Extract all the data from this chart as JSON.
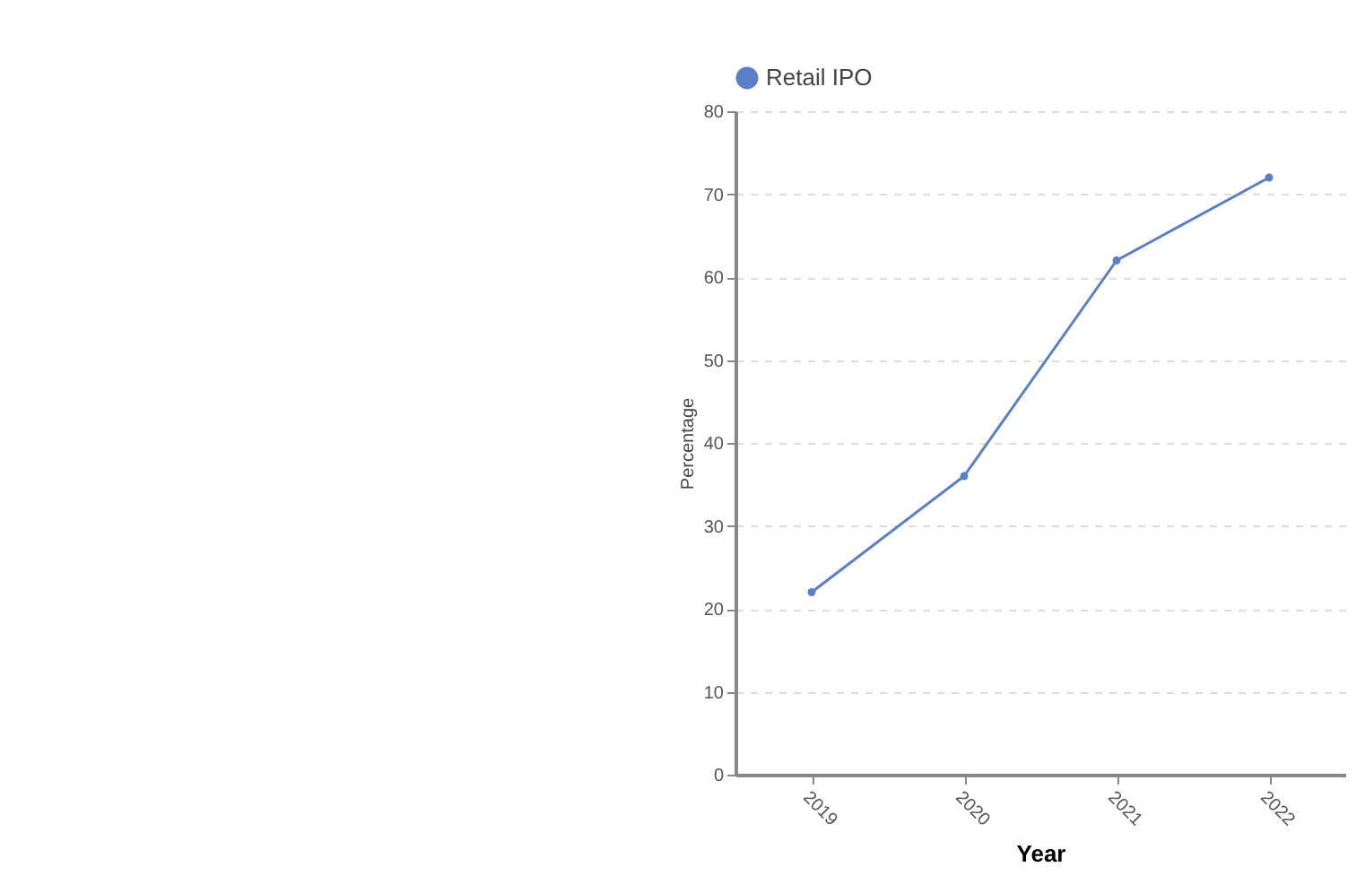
{
  "chart_data": {
    "type": "line",
    "xlabel": "Year",
    "ylabel": "Percentage",
    "categories": [
      "2019",
      "2020",
      "2021",
      "2022"
    ],
    "series": [
      {
        "name": "Retail IPO",
        "color": "#5b7fc7",
        "values": [
          22,
          36,
          62,
          72
        ]
      }
    ],
    "ylim": [
      0,
      80
    ],
    "yticks": [
      0,
      10,
      20,
      30,
      40,
      50,
      60,
      70,
      80
    ],
    "grid": "y",
    "legend": "top",
    "marker": "circle",
    "line_style": "solid"
  }
}
